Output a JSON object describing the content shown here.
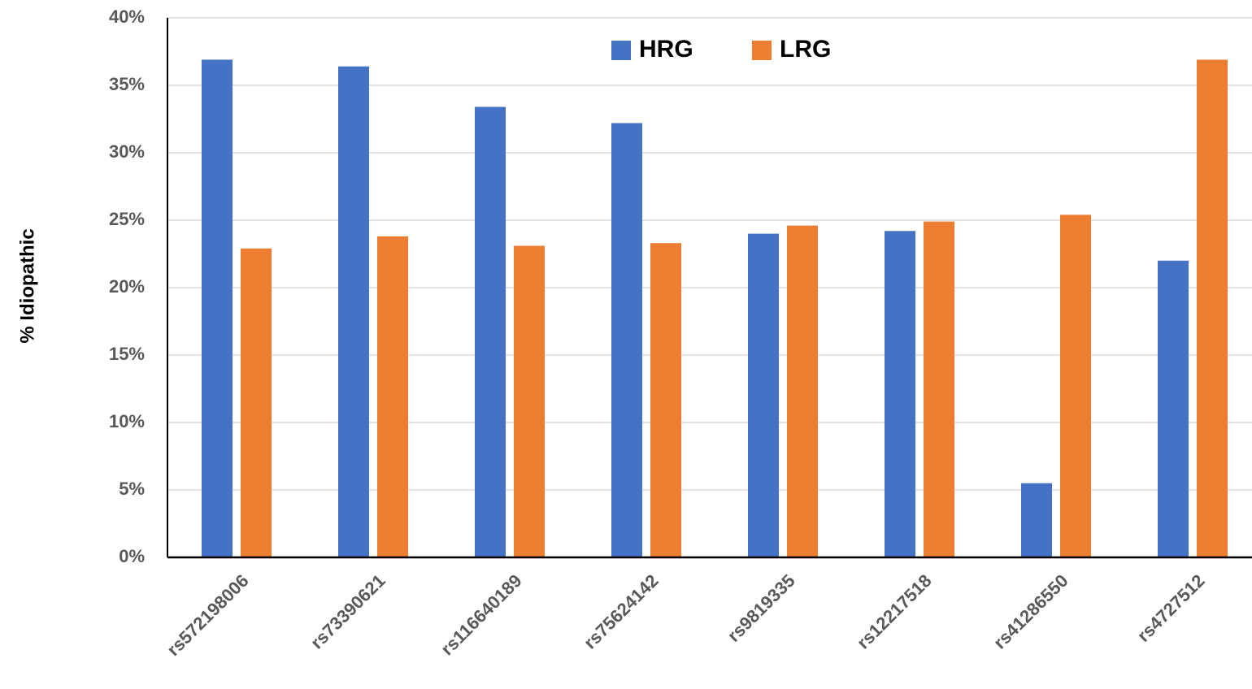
{
  "chart_data": {
    "type": "bar",
    "y_label": "% Idiopathic",
    "categories": [
      "rs572198006",
      "rs73390621",
      "rs116640189",
      "rs75624142",
      "rs9819335",
      "rs12217518",
      "rs41286550",
      "rs4727512"
    ],
    "series": [
      {
        "name": "HRG",
        "color": "#4472c4",
        "values": [
          36.9,
          36.4,
          33.4,
          32.2,
          24.0,
          24.2,
          5.5,
          22.0
        ]
      },
      {
        "name": "LRG",
        "color": "#ed7d31",
        "values": [
          22.9,
          23.8,
          23.1,
          23.3,
          24.6,
          24.9,
          25.4,
          36.9
        ]
      }
    ],
    "ylim": [
      0,
      40
    ],
    "yticks": [
      {
        "value": 0,
        "label": "0%"
      },
      {
        "value": 5,
        "label": "5%"
      },
      {
        "value": 10,
        "label": "10%"
      },
      {
        "value": 15,
        "label": "15%"
      },
      {
        "value": 20,
        "label": "20%"
      },
      {
        "value": 25,
        "label": "25%"
      },
      {
        "value": 30,
        "label": "30%"
      },
      {
        "value": 35,
        "label": "35%"
      },
      {
        "value": 40,
        "label": "40%"
      }
    ],
    "grid": true,
    "legend": "top"
  }
}
